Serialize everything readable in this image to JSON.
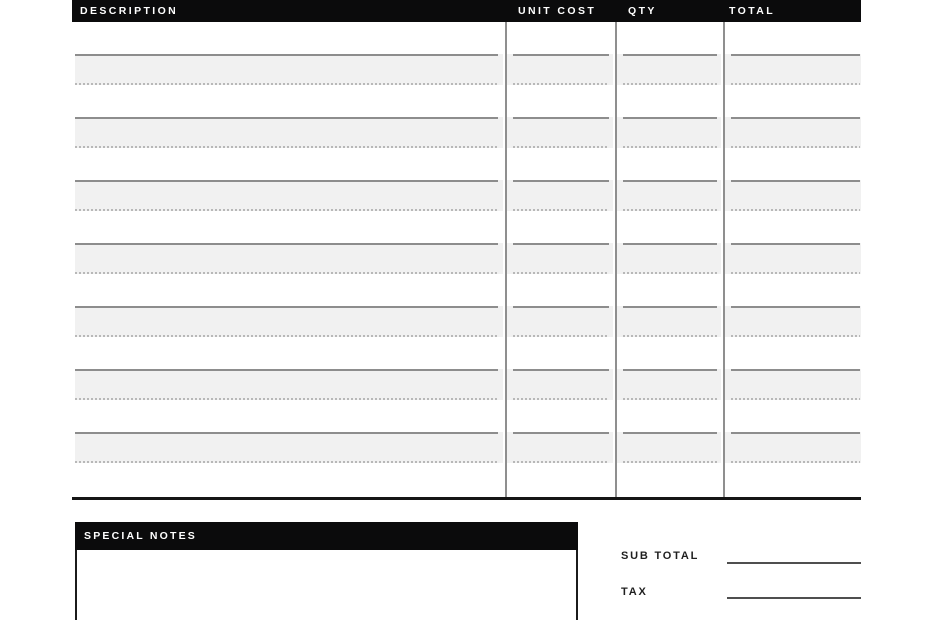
{
  "table": {
    "columns": [
      {
        "key": "description",
        "label": "DESCRIPTION"
      },
      {
        "key": "unit_cost",
        "label": "UNIT COST"
      },
      {
        "key": "qty",
        "label": "QTY"
      },
      {
        "key": "total",
        "label": "TOTAL"
      }
    ],
    "rows": [
      {
        "description": "",
        "unit_cost": "",
        "qty": "",
        "total": ""
      },
      {
        "description": "",
        "unit_cost": "",
        "qty": "",
        "total": ""
      },
      {
        "description": "",
        "unit_cost": "",
        "qty": "",
        "total": ""
      },
      {
        "description": "",
        "unit_cost": "",
        "qty": "",
        "total": ""
      },
      {
        "description": "",
        "unit_cost": "",
        "qty": "",
        "total": ""
      },
      {
        "description": "",
        "unit_cost": "",
        "qty": "",
        "total": ""
      },
      {
        "description": "",
        "unit_cost": "",
        "qty": "",
        "total": ""
      }
    ]
  },
  "notes": {
    "title": "SPECIAL NOTES",
    "content": ""
  },
  "totals": {
    "sub_total": {
      "label": "SUB TOTAL",
      "value": ""
    },
    "tax": {
      "label": "TAX",
      "value": ""
    }
  },
  "colors": {
    "bar_black": "#0b0b0c",
    "band_gray": "#f1f1f1",
    "rule_gray": "#8d8d8d",
    "dot_gray": "#b8b8b8",
    "dark_rule": "#4f4f4f"
  }
}
